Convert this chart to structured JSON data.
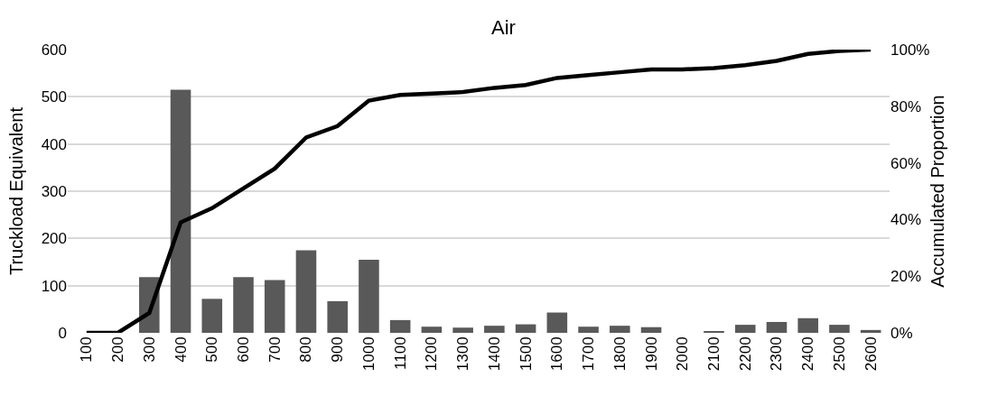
{
  "chart_data": {
    "type": "bar",
    "title": "Air",
    "ylabel": "Truckload Equivalent",
    "y2label": "Accumulated Proportion",
    "categories": [
      "100",
      "200",
      "300",
      "400",
      "500",
      "600",
      "700",
      "800",
      "900",
      "1000",
      "1100",
      "1200",
      "1300",
      "1400",
      "1500",
      "1600",
      "1700",
      "1800",
      "1900",
      "2000",
      "2100",
      "2200",
      "2300",
      "2400",
      "2500",
      "2600"
    ],
    "series": [
      {
        "color": "#595959",
        "values": [
          0,
          0,
          118,
          515,
          72,
          118,
          112,
          175,
          67,
          155,
          27,
          13,
          11,
          15,
          18,
          43,
          13,
          15,
          12,
          0,
          3,
          17,
          23,
          31,
          17,
          6
        ]
      },
      {
        "type": "line",
        "axis": "y2",
        "color": "#000000",
        "values": [
          0,
          0,
          7,
          39,
          44,
          51,
          58,
          69,
          73,
          82,
          84,
          84.5,
          85,
          86.5,
          87.5,
          90,
          91,
          92,
          93,
          93,
          93.5,
          94.5,
          96,
          98.5,
          99.5,
          100
        ]
      }
    ],
    "ylim": [
      0,
      600
    ],
    "yticks": [
      0,
      100,
      200,
      300,
      400,
      500,
      600
    ],
    "y2lim": [
      0,
      100
    ],
    "y2ticks": [
      {
        "value": 0,
        "label": "0%"
      },
      {
        "value": 20,
        "label": "20%"
      },
      {
        "value": 40,
        "label": "40%"
      },
      {
        "value": 60,
        "label": "60%"
      },
      {
        "value": 80,
        "label": "80%"
      },
      {
        "value": 100,
        "label": "100%"
      }
    ],
    "grid": "y",
    "line_style": "solid"
  }
}
